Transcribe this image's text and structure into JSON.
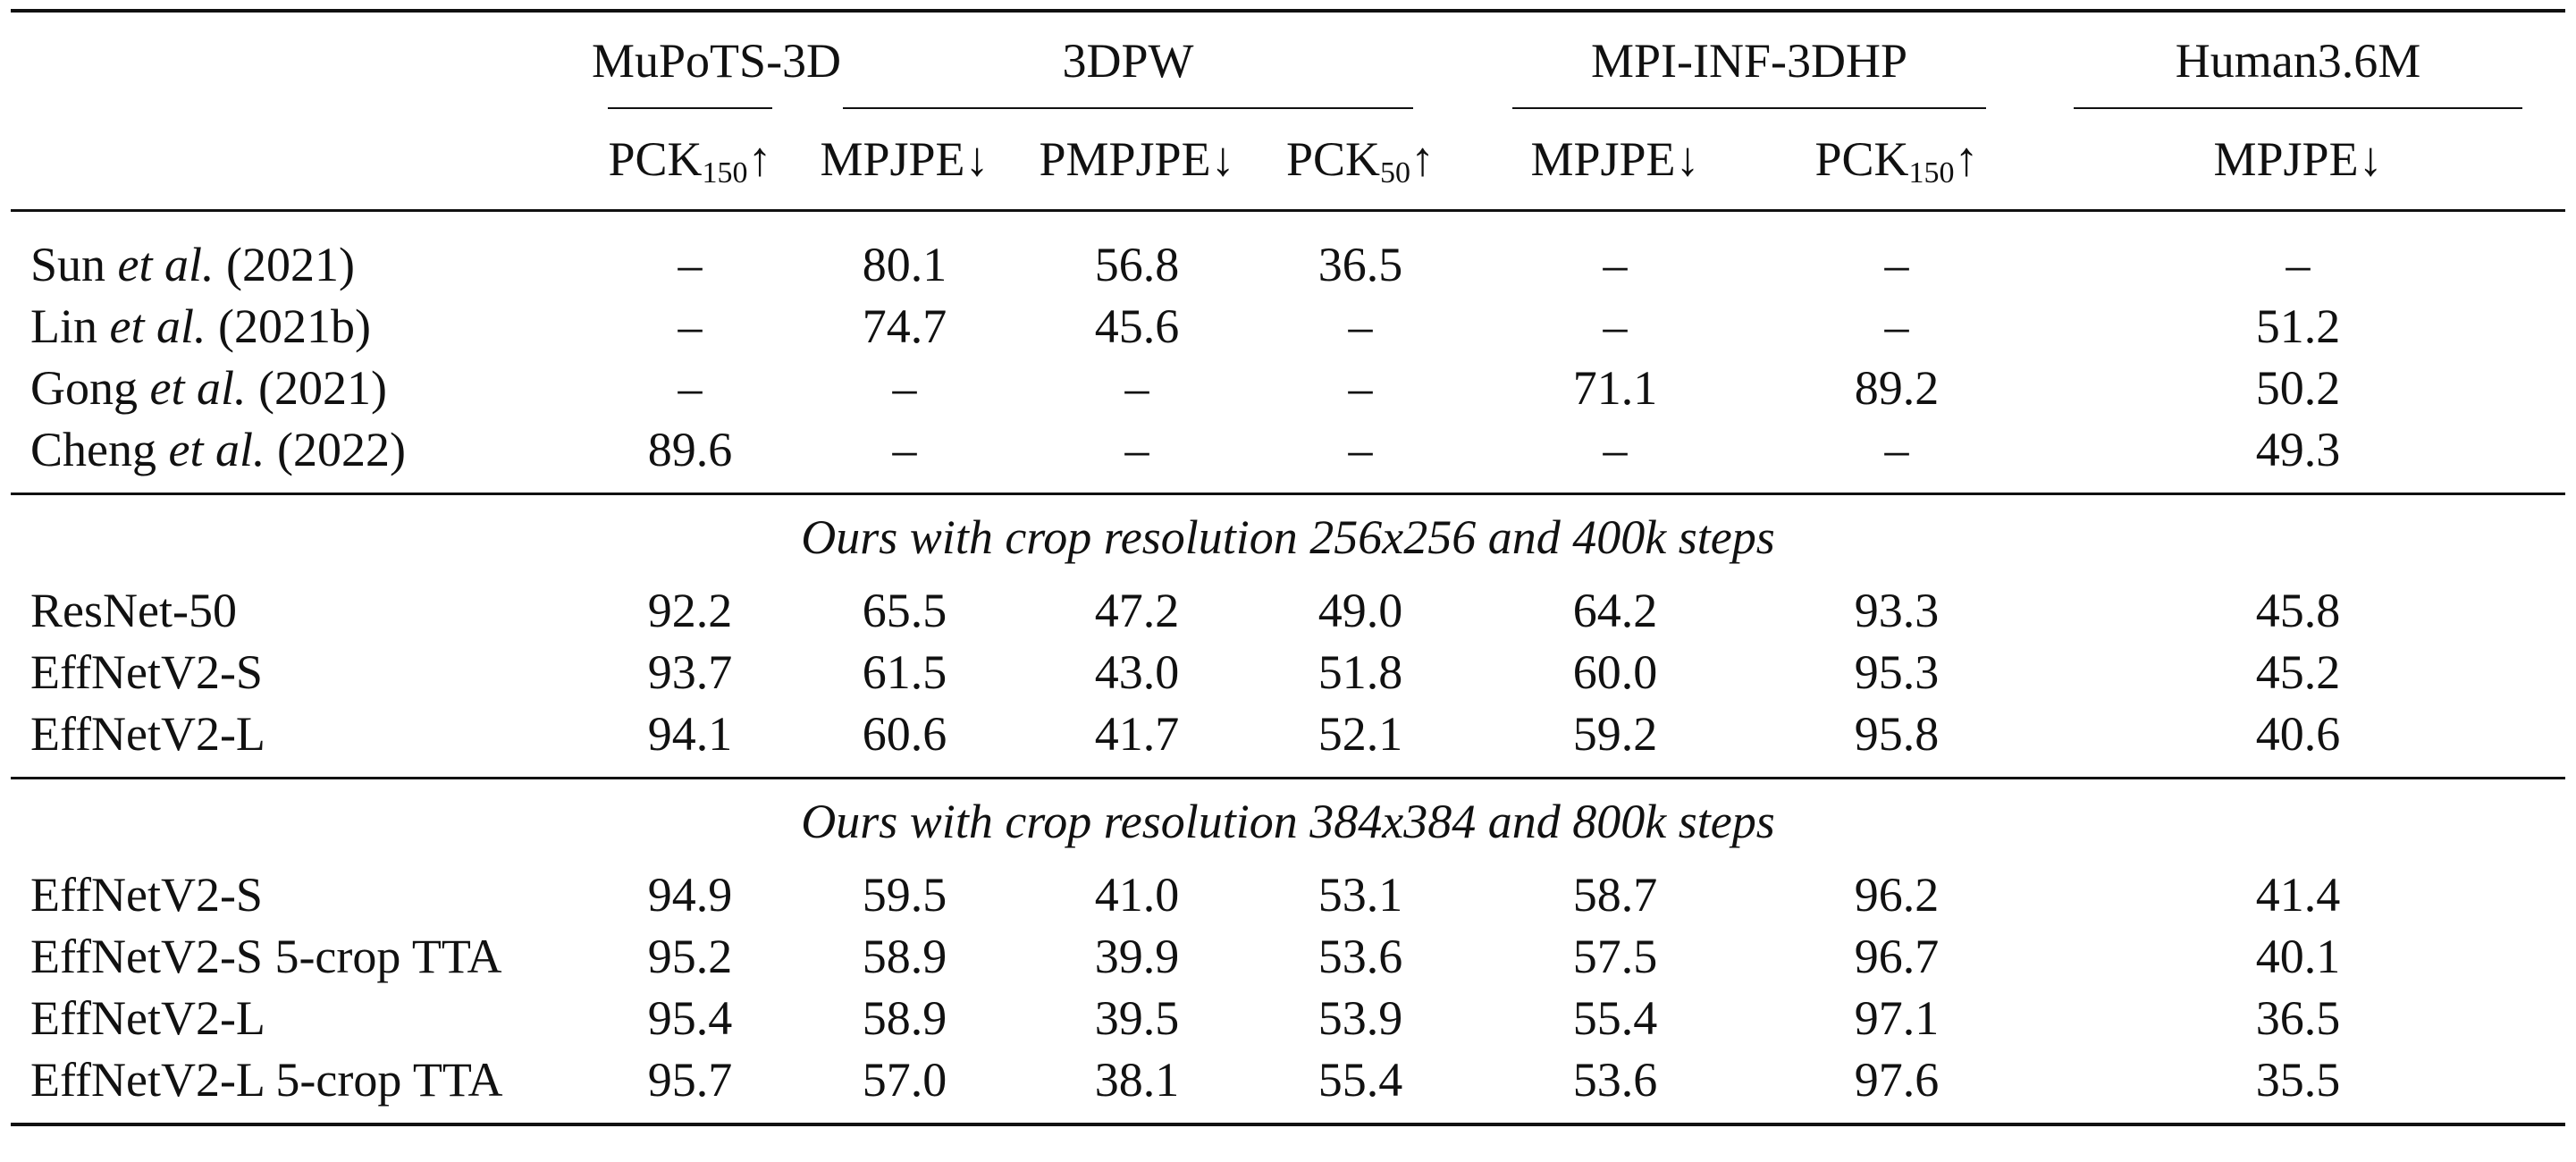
{
  "datasets": [
    {
      "name": "MuPoTS-3D",
      "span": 1
    },
    {
      "name": "3DPW",
      "span": 3
    },
    {
      "name": "MPI-INF-3DHP",
      "span": 2
    },
    {
      "name": "Human3.6M",
      "span": 1
    }
  ],
  "metrics": [
    {
      "base": "PCK",
      "sub": "150",
      "arrow": "↑"
    },
    {
      "base": "MPJPE",
      "sub": "",
      "arrow": "↓"
    },
    {
      "base": "PMPJPE",
      "sub": "",
      "arrow": "↓"
    },
    {
      "base": "PCK",
      "sub": "50",
      "arrow": "↑"
    },
    {
      "base": "MPJPE",
      "sub": "",
      "arrow": "↓"
    },
    {
      "base": "PCK",
      "sub": "150",
      "arrow": "↑"
    },
    {
      "base": "MPJPE",
      "sub": "",
      "arrow": "↓"
    }
  ],
  "prior_work": [
    {
      "author": "Sun",
      "etal": "et al.",
      "year": "(2021)",
      "values": [
        "–",
        "80.1",
        "56.8",
        "36.5",
        "–",
        "–",
        "–"
      ]
    },
    {
      "author": "Lin",
      "etal": "et al.",
      "year": "(2021b)",
      "values": [
        "–",
        "74.7",
        "45.6",
        "–",
        "–",
        "–",
        "51.2"
      ]
    },
    {
      "author": "Gong",
      "etal": "et al.",
      "year": "(2021)",
      "values": [
        "–",
        "–",
        "–",
        "–",
        "71.1",
        "89.2",
        "50.2"
      ]
    },
    {
      "author": "Cheng",
      "etal": "et al.",
      "year": "(2022)",
      "values": [
        "89.6",
        "–",
        "–",
        "–",
        "–",
        "–",
        "49.3"
      ]
    }
  ],
  "sections": [
    {
      "title": "Ours with crop resolution 256x256 and 400k steps",
      "rows": [
        {
          "label": "ResNet-50",
          "values": [
            "92.2",
            "65.5",
            "47.2",
            "49.0",
            "64.2",
            "93.3",
            "45.8"
          ]
        },
        {
          "label": "EffNetV2-S",
          "values": [
            "93.7",
            "61.5",
            "43.0",
            "51.8",
            "60.0",
            "95.3",
            "45.2"
          ]
        },
        {
          "label": "EffNetV2-L",
          "values": [
            "94.1",
            "60.6",
            "41.7",
            "52.1",
            "59.2",
            "95.8",
            "40.6"
          ]
        }
      ]
    },
    {
      "title": "Ours with crop resolution 384x384 and 800k steps",
      "rows": [
        {
          "label": "EffNetV2-S",
          "values": [
            "94.9",
            "59.5",
            "41.0",
            "53.1",
            "58.7",
            "96.2",
            "41.4"
          ]
        },
        {
          "label": "EffNetV2-S 5-crop TTA",
          "values": [
            "95.2",
            "58.9",
            "39.9",
            "53.6",
            "57.5",
            "96.7",
            "40.1"
          ]
        },
        {
          "label": "EffNetV2-L",
          "values": [
            "95.4",
            "58.9",
            "39.5",
            "53.9",
            "55.4",
            "97.1",
            "36.5"
          ]
        },
        {
          "label": "EffNetV2-L 5-crop TTA",
          "values": [
            "95.7",
            "57.0",
            "38.1",
            "55.4",
            "53.6",
            "97.6",
            "35.5"
          ]
        }
      ]
    }
  ]
}
